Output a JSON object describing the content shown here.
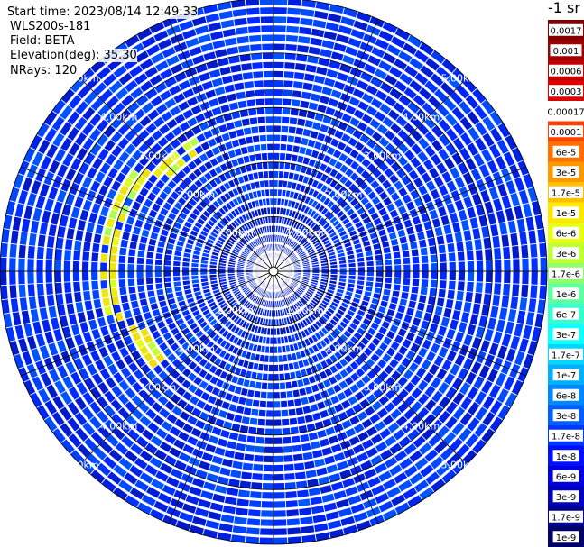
{
  "header": {
    "start_time": "Start time: 2023/08/14 12:49:33",
    "instrument": "WLS200s-181",
    "field": "Field: BETA",
    "elevation": "Elevation(deg): 35.30",
    "nrays": "NRays: 120"
  },
  "colorbar": {
    "unit": "-1 sr",
    "labels": [
      "0.0017",
      "0.001",
      "0.0006",
      "0.0003",
      "0.00017",
      "0.0001",
      "6e-5",
      "3e-5",
      "1.7e-5",
      "1e-5",
      "6e-6",
      "3e-6",
      "1.7e-6",
      "1e-6",
      "6e-7",
      "3e-7",
      "1.7e-7",
      "1e-7",
      "6e-8",
      "3e-8",
      "1.7e-8",
      "1e-8",
      "6e-9",
      "3e-9",
      "1.7e-9",
      "1e-9"
    ],
    "colors": [
      "#800000",
      "#a00000",
      "#c00000",
      "#e00000",
      "#ffffff",
      "#ff4000",
      "#ff7000",
      "#ff9800",
      "#ffc000",
      "#ffe800",
      "#e8ff10",
      "#c0ff38",
      "#90ff68",
      "#60ffa0",
      "#38ffd0",
      "#10ffff",
      "#00d8ff",
      "#00b0ff",
      "#0088ff",
      "#0060ff",
      "#0038ff",
      "#0010ff",
      "#0000e0",
      "#0000b8",
      "#000090",
      "#000068"
    ]
  },
  "chart_data": {
    "type": "heatmap",
    "projection": "polar PPI",
    "field": "BETA",
    "rays": 120,
    "max_range_km": 5.0,
    "range_ring_labels": [
      "1.00km",
      "2.00km",
      "3.00km",
      "4.00km",
      "5.00km"
    ],
    "range_rings_km": [
      1,
      2,
      3,
      4,
      5
    ],
    "colorscale_min": 1e-09,
    "colorscale_max": 0.0017,
    "colorscale": "log",
    "dominant_value": 1.7e-08,
    "aerosol_arc": {
      "value": 1e-05,
      "range_km": 3.0,
      "azimuth_deg": [
        230,
        330
      ]
    }
  }
}
